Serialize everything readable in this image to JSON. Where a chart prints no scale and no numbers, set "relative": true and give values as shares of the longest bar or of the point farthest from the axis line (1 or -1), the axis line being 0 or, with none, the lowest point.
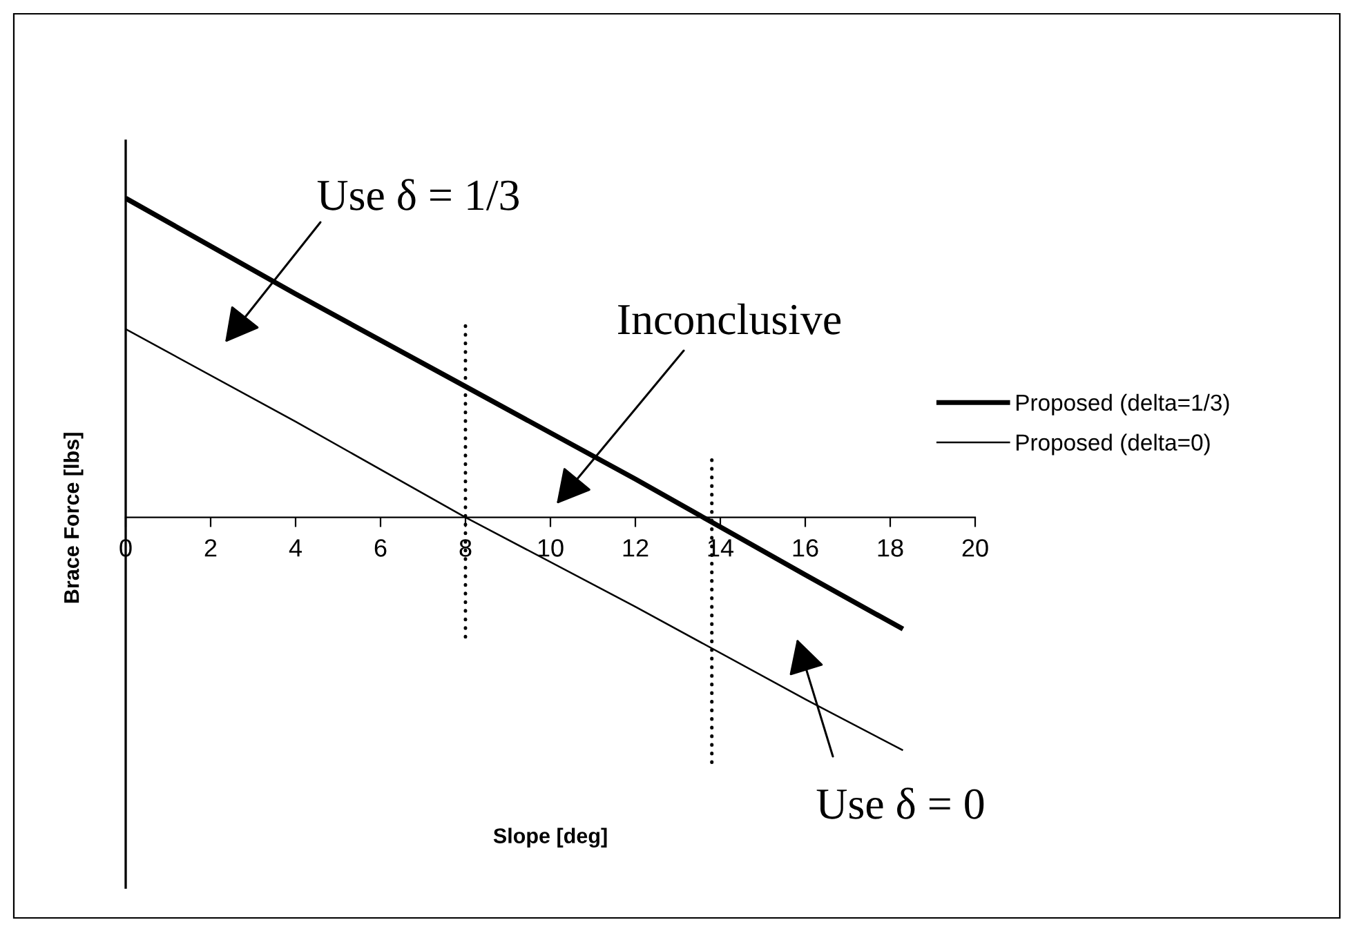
{
  "chart_data": {
    "type": "line",
    "xlabel": "Slope [deg]",
    "ylabel": "Brace Force [lbs]",
    "relative": true,
    "xlim": [
      0,
      20
    ],
    "xticks": [
      0,
      2,
      4,
      6,
      8,
      10,
      12,
      14,
      16,
      18,
      20
    ],
    "legend": "right",
    "marker": "none",
    "line_style": "solid",
    "series": [
      {
        "name": "Proposed (delta=1/3)",
        "color": "#000000",
        "x": [
          0,
          4,
          8,
          12,
          16,
          18.3
        ],
        "values": [
          1.0,
          0.7,
          0.41,
          0.12,
          -0.18,
          -0.35
        ]
      },
      {
        "name": "Proposed (delta=0)",
        "color": "#000000",
        "x": [
          0,
          4,
          8,
          12,
          16,
          18.3
        ],
        "values": [
          0.59,
          0.3,
          0.0,
          -0.28,
          -0.57,
          -0.73
        ]
      },
      {
        "type": "line",
        "line_style": "dotted",
        "color": "#000000",
        "x": [
          8,
          8
        ],
        "values": [
          0.6,
          -0.39
        ]
      },
      {
        "type": "line",
        "line_style": "dotted",
        "color": "#000000",
        "x": [
          13.8,
          13.8
        ],
        "values": [
          0.18,
          -0.78
        ]
      }
    ],
    "annotations": [
      "Use δ = 1/3",
      "Inconclusive",
      "Use δ = 0"
    ]
  }
}
